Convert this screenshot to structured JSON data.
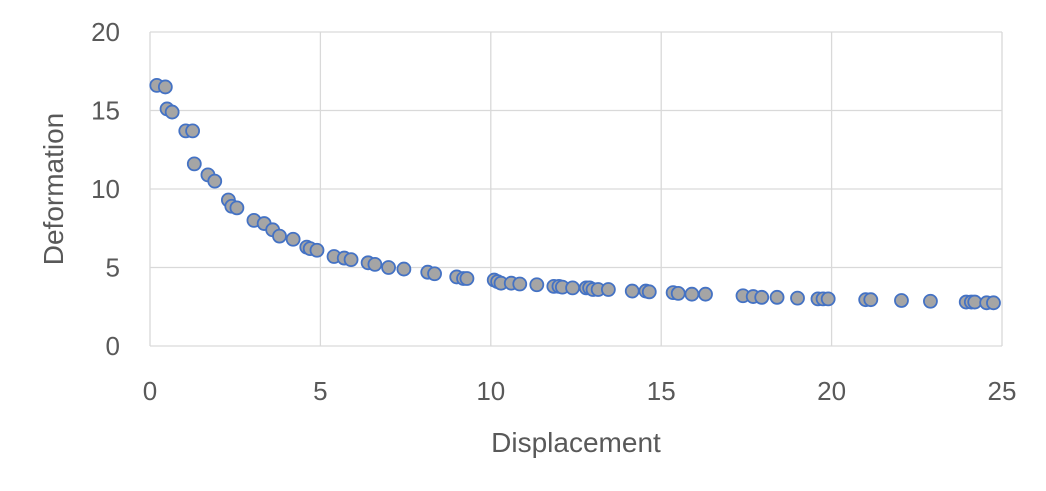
{
  "chart_data": {
    "type": "scatter",
    "title": "",
    "xlabel": "Displacement",
    "ylabel": "Deformation",
    "xlim": [
      0,
      25
    ],
    "ylim": [
      0,
      20
    ],
    "xticks": [
      0,
      5,
      10,
      15,
      20,
      25
    ],
    "yticks": [
      0,
      5,
      10,
      15,
      20
    ],
    "xtick_labels": [
      "0",
      "5",
      "10",
      "15",
      "20",
      "25"
    ],
    "ytick_labels": [
      "0",
      "5",
      "10",
      "15",
      "20"
    ],
    "grid": true,
    "legend": "none",
    "colors": {
      "marker_fill": "#a5a5a5",
      "marker_edge": "#4472c4",
      "grid": "#d9d9d9",
      "text": "#595959"
    },
    "series": [
      {
        "x": [
          0.2,
          0.45,
          0.5,
          0.65,
          1.05,
          1.25,
          1.3,
          1.7,
          1.9,
          2.3,
          2.4,
          2.55,
          3.05,
          3.35,
          3.6,
          3.8,
          4.2,
          4.6,
          4.7,
          4.9,
          5.4,
          5.7,
          5.9,
          6.4,
          6.6,
          7.0,
          7.45,
          8.15,
          8.35,
          9.0,
          9.2,
          9.3,
          10.1,
          10.2,
          10.3,
          10.6,
          10.85,
          11.35,
          11.85,
          12.0,
          12.1,
          12.4,
          12.8,
          12.9,
          13.0,
          13.15,
          13.45,
          14.15,
          14.55,
          14.65,
          15.35,
          15.5,
          15.9,
          16.3,
          17.4,
          17.7,
          17.95,
          18.4,
          19.0,
          19.6,
          19.75,
          19.9,
          21.0,
          21.15,
          22.05,
          22.9,
          23.95,
          24.1,
          24.2,
          24.55,
          24.75
        ],
        "y": [
          16.6,
          16.5,
          15.1,
          14.9,
          13.7,
          13.7,
          11.6,
          10.9,
          10.5,
          9.3,
          8.9,
          8.8,
          8.0,
          7.8,
          7.4,
          7.0,
          6.8,
          6.3,
          6.2,
          6.1,
          5.7,
          5.6,
          5.5,
          5.3,
          5.2,
          5.0,
          4.9,
          4.7,
          4.6,
          4.4,
          4.3,
          4.3,
          4.2,
          4.1,
          4.0,
          4.0,
          3.95,
          3.9,
          3.8,
          3.8,
          3.75,
          3.7,
          3.7,
          3.7,
          3.6,
          3.6,
          3.6,
          3.5,
          3.5,
          3.45,
          3.4,
          3.35,
          3.3,
          3.3,
          3.2,
          3.15,
          3.1,
          3.1,
          3.05,
          3.0,
          3.0,
          3.0,
          2.95,
          2.95,
          2.9,
          2.85,
          2.8,
          2.8,
          2.8,
          2.75,
          2.75
        ]
      }
    ]
  }
}
